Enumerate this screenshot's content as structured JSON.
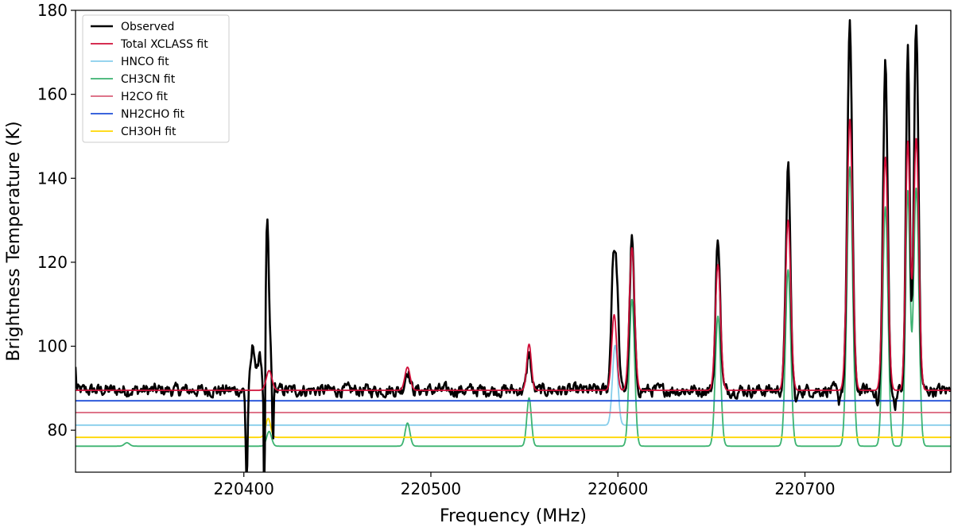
{
  "chart_data": {
    "type": "line",
    "title": "",
    "xlabel": "Frequency (MHz)",
    "ylabel": "Brightness Temperature (K)",
    "xlim": [
      220310,
      220778
    ],
    "ylim": [
      70,
      180
    ],
    "xticks": [
      220400,
      220500,
      220600,
      220700
    ],
    "yticks": [
      80,
      100,
      120,
      140,
      160,
      180
    ],
    "grid": false,
    "legend_position": "top-left",
    "series": [
      {
        "name": "Observed",
        "color": "#000000",
        "kind": "observed",
        "baseline": 89.5,
        "noise": 1.3,
        "peaks": [
          {
            "x": 220309.5,
            "amp": 8.5,
            "w": 0.5
          },
          {
            "x": 220405,
            "amp": 10.5,
            "w": 1.2
          },
          {
            "x": 220408.5,
            "amp": 9.5,
            "w": 0.8
          },
          {
            "x": 220412.5,
            "amp": 40,
            "w": 0.9
          },
          {
            "x": 220415.0,
            "amp": 8,
            "w": 0.9
          },
          {
            "x": 220487.5,
            "amp": 5,
            "w": 1.2
          },
          {
            "x": 220552.5,
            "amp": 9,
            "w": 1.1
          },
          {
            "x": 220597.5,
            "amp": 30,
            "w": 1.1
          },
          {
            "x": 220599.5,
            "amp": 22,
            "w": 1.0
          },
          {
            "x": 220607.5,
            "amp": 36,
            "w": 1.2
          },
          {
            "x": 220653.5,
            "amp": 36.5,
            "w": 1.2
          },
          {
            "x": 220691.0,
            "amp": 53.5,
            "w": 1.2
          },
          {
            "x": 220724.0,
            "amp": 86.5,
            "w": 1.3
          },
          {
            "x": 220743.0,
            "amp": 78.5,
            "w": 1.2
          },
          {
            "x": 220755.0,
            "amp": 81.5,
            "w": 1.0
          },
          {
            "x": 220759.5,
            "amp": 87.5,
            "w": 1.2
          }
        ],
        "dips": [
          {
            "x": 220401.5,
            "depth": 22,
            "w": 0.5
          },
          {
            "x": 220411.0,
            "depth": 40,
            "w": 0.35
          },
          {
            "x": 220415.5,
            "depth": 19,
            "w": 0.45
          },
          {
            "x": 220695.5,
            "depth": 3,
            "w": 0.6
          },
          {
            "x": 220718.0,
            "depth": 3,
            "w": 0.6
          },
          {
            "x": 220739.0,
            "depth": 4,
            "w": 0.6
          },
          {
            "x": 220748.0,
            "depth": 4,
            "w": 0.6
          }
        ]
      },
      {
        "name": "Total XCLASS fit",
        "color": "#d0103a",
        "kind": "model",
        "baseline": 89.5,
        "peaks": [
          {
            "x": 220413.5,
            "amp": 4.7,
            "w": 1.5
          },
          {
            "x": 220487.5,
            "amp": 5.5,
            "w": 1.4
          },
          {
            "x": 220552.5,
            "amp": 11,
            "w": 1.2
          },
          {
            "x": 220598.0,
            "amp": 18,
            "w": 1.3
          },
          {
            "x": 220607.5,
            "amp": 34,
            "w": 1.4
          },
          {
            "x": 220653.5,
            "amp": 30,
            "w": 1.4
          },
          {
            "x": 220691.0,
            "amp": 40.5,
            "w": 1.4
          },
          {
            "x": 220724.0,
            "amp": 64.5,
            "w": 1.5
          },
          {
            "x": 220743.0,
            "amp": 55.5,
            "w": 1.4
          },
          {
            "x": 220755.0,
            "amp": 59,
            "w": 1.2
          },
          {
            "x": 220759.5,
            "amp": 60,
            "w": 1.4
          }
        ]
      },
      {
        "name": "HNCO fit",
        "color": "#87ceeb",
        "kind": "model",
        "baseline": 81.2,
        "peaks": [
          {
            "x": 220598.5,
            "amp": 19,
            "w": 1.4
          }
        ]
      },
      {
        "name": "CH3CN fit",
        "color": "#3cb371",
        "kind": "model",
        "baseline": 76.2,
        "peaks": [
          {
            "x": 220337.5,
            "amp": 0.8,
            "w": 1.4
          },
          {
            "x": 220413.5,
            "amp": 3.5,
            "w": 1.3
          },
          {
            "x": 220487.5,
            "amp": 5.5,
            "w": 1.3
          },
          {
            "x": 220552.5,
            "amp": 11.5,
            "w": 1.2
          },
          {
            "x": 220607.5,
            "amp": 35,
            "w": 1.4
          },
          {
            "x": 220653.5,
            "amp": 31,
            "w": 1.4
          },
          {
            "x": 220691.0,
            "amp": 42,
            "w": 1.4
          },
          {
            "x": 220724.0,
            "amp": 66.5,
            "w": 1.5
          },
          {
            "x": 220743.0,
            "amp": 57,
            "w": 1.4
          },
          {
            "x": 220755.0,
            "amp": 60.5,
            "w": 1.2
          },
          {
            "x": 220759.5,
            "amp": 61.5,
            "w": 1.4
          }
        ]
      },
      {
        "name": "H2CO fit",
        "color": "#d9607a",
        "kind": "model",
        "baseline": 84.2,
        "peaks": []
      },
      {
        "name": "NH2CHO fit",
        "color": "#1f4fd8",
        "kind": "model",
        "baseline": 87.0,
        "peaks": []
      },
      {
        "name": "CH3OH fit",
        "color": "#ffd700",
        "kind": "model",
        "baseline": 78.3,
        "peaks": [
          {
            "x": 220413.0,
            "amp": 4.5,
            "w": 1.3
          }
        ]
      }
    ]
  }
}
